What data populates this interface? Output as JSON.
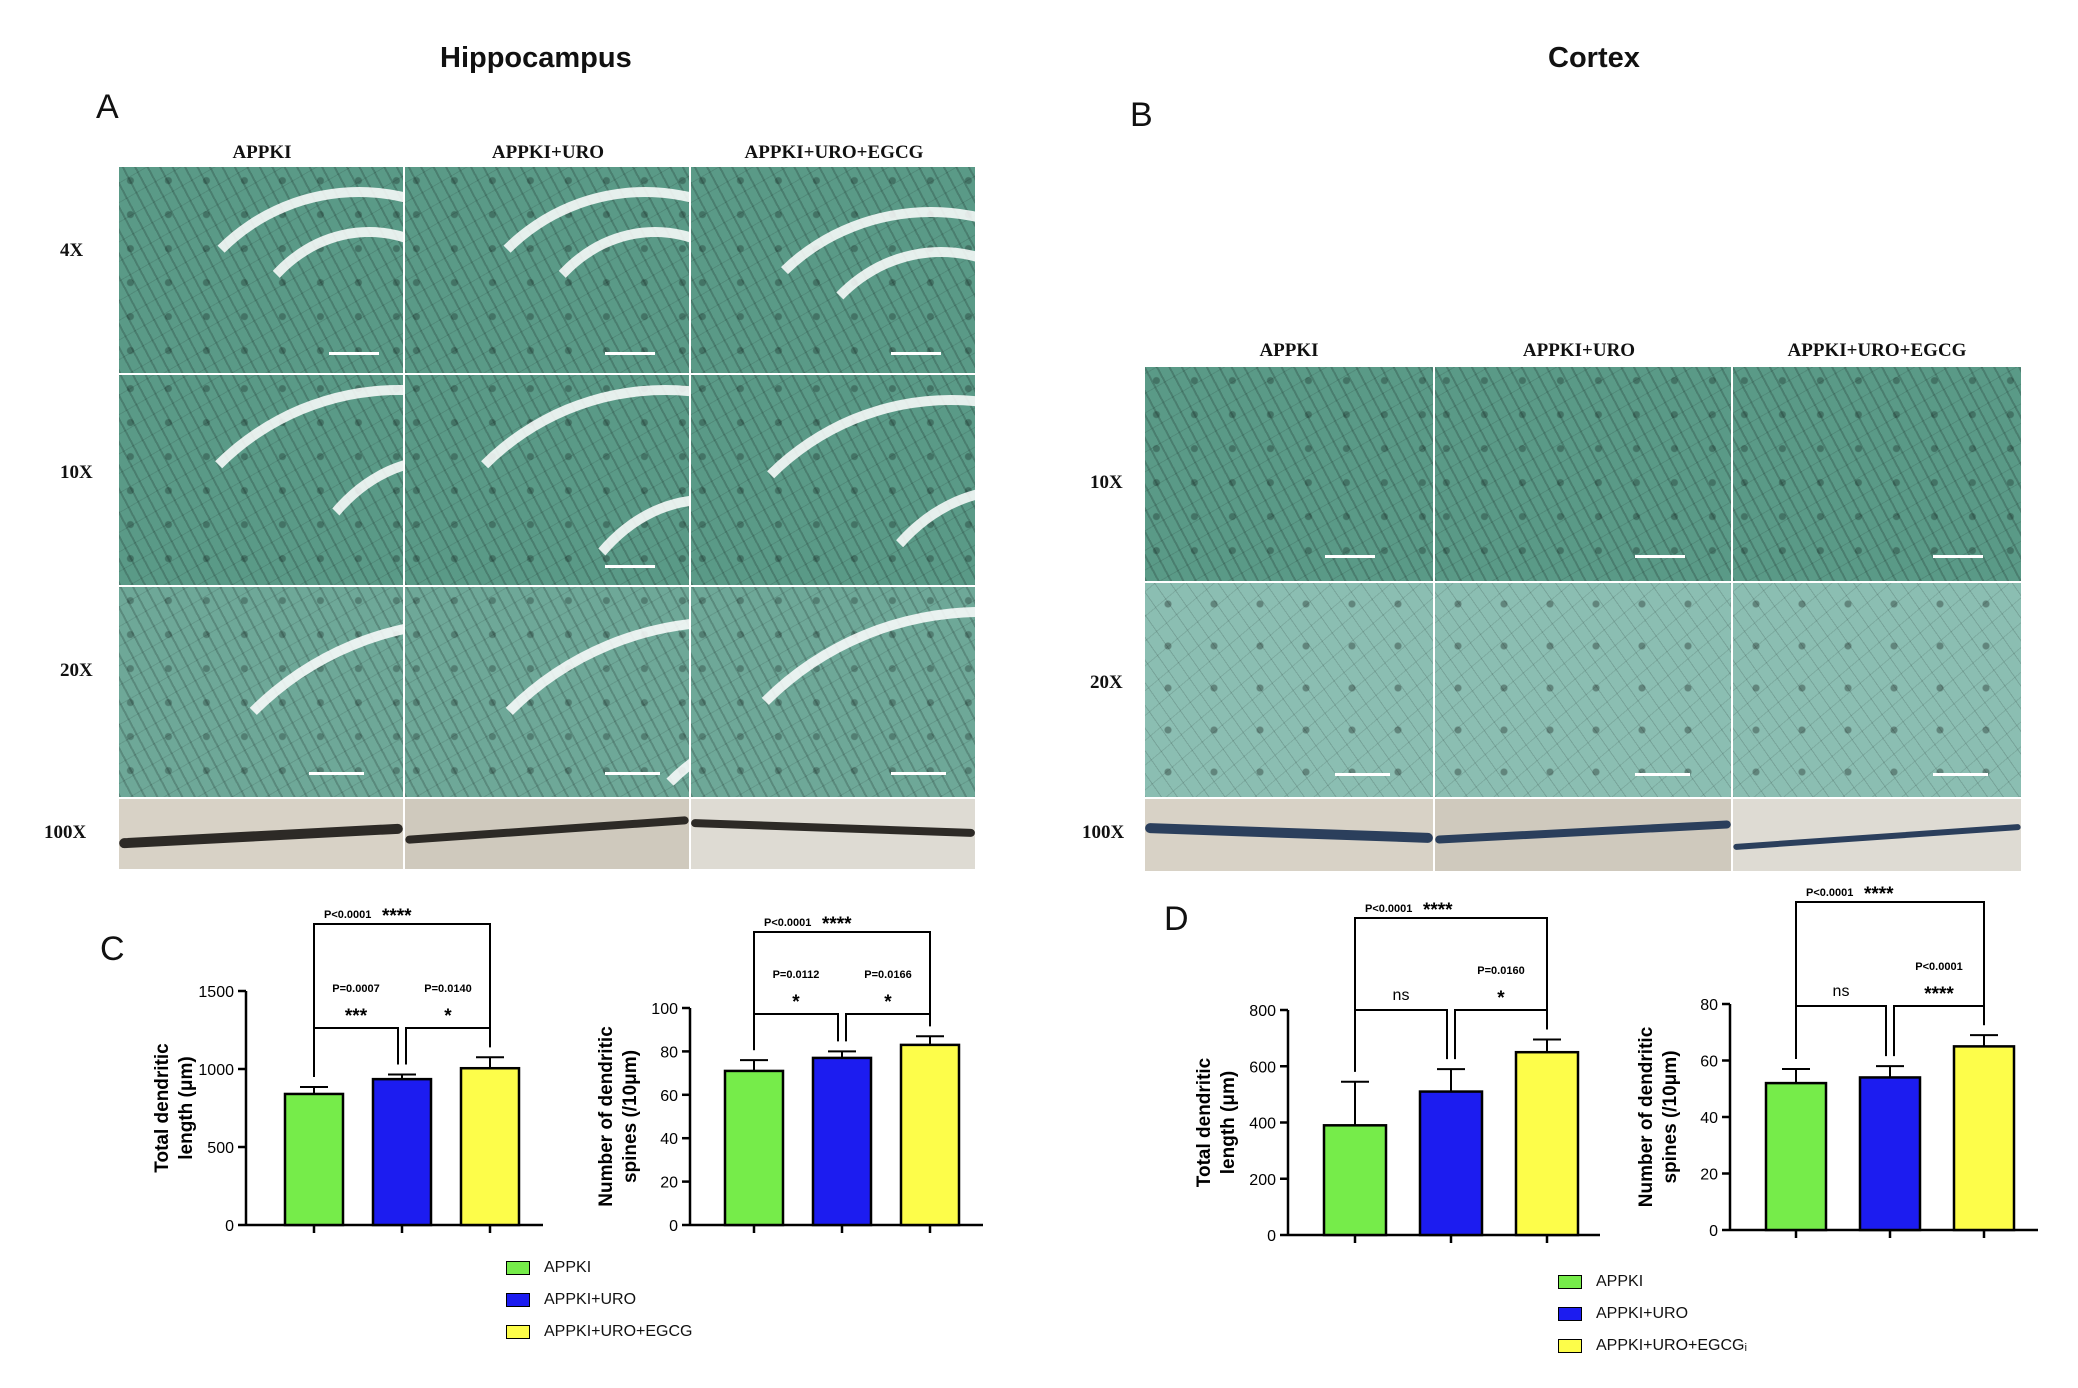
{
  "titles": {
    "left": "Hippocampus",
    "right": "Cortex"
  },
  "panel_letters": {
    "a": "A",
    "b": "B",
    "c": "C",
    "d": "D"
  },
  "groups": [
    "APPKI",
    "APPKI+URO",
    "APPKI+URO+EGCG"
  ],
  "hippocampus_rows": [
    "4X",
    "10X",
    "20X",
    "100X"
  ],
  "cortex_rows": [
    "10X",
    "20X",
    "100X"
  ],
  "colors": {
    "APPKI": "#76ec4a",
    "APPKI+URO": "#1c1cf0",
    "APPKI+URO+EGCG": "#fdfd4a"
  },
  "legend_left": [
    "APPKI",
    "APPKI+URO",
    "APPKI+URO+EGCG"
  ],
  "legend_right": [
    "APPKI",
    "APPKI+URO",
    "APPKI+URO+EGCGᵢ"
  ],
  "chart_data": [
    {
      "id": "C1",
      "type": "bar",
      "categories": [
        "APPKI",
        "APPKI+URO",
        "APPKI+URO+EGCG"
      ],
      "values": [
        840,
        935,
        1005
      ],
      "errors": [
        45,
        30,
        70
      ],
      "ylabel": "Total dendritic length (μm)",
      "ylim": [
        0,
        1500
      ],
      "yticks": [
        0,
        500,
        1000,
        1500
      ],
      "comparisons": [
        {
          "from": 0,
          "to": 1,
          "p": "P=0.0007",
          "stars": "***"
        },
        {
          "from": 1,
          "to": 2,
          "p": "P=0.0140",
          "stars": "*"
        },
        {
          "from": 0,
          "to": 2,
          "p": "P<0.0001",
          "stars": "****"
        }
      ]
    },
    {
      "id": "C2",
      "type": "bar",
      "categories": [
        "APPKI",
        "APPKI+URO",
        "APPKI+URO+EGCG"
      ],
      "values": [
        71,
        77,
        83
      ],
      "errors": [
        5,
        3,
        4
      ],
      "ylabel": "Number of dendritic spines (/10μm)",
      "ylim": [
        0,
        100
      ],
      "yticks": [
        0,
        20,
        40,
        60,
        80,
        100
      ],
      "comparisons": [
        {
          "from": 0,
          "to": 1,
          "p": "P=0.0112",
          "stars": "*"
        },
        {
          "from": 1,
          "to": 2,
          "p": "P=0.0166",
          "stars": "*"
        },
        {
          "from": 0,
          "to": 2,
          "p": "P<0.0001",
          "stars": "****"
        }
      ]
    },
    {
      "id": "D1",
      "type": "bar",
      "categories": [
        "APPKI",
        "APPKI+URO",
        "APPKI+URO+EGCG"
      ],
      "values": [
        390,
        510,
        650
      ],
      "errors": [
        155,
        80,
        45
      ],
      "ylabel": "Total dendritic length (μm)",
      "ylim": [
        0,
        800
      ],
      "yticks": [
        0,
        200,
        400,
        600,
        800
      ],
      "comparisons": [
        {
          "from": 0,
          "to": 1,
          "p": "",
          "stars": "ns"
        },
        {
          "from": 1,
          "to": 2,
          "p": "P=0.0160",
          "stars": "*"
        },
        {
          "from": 0,
          "to": 2,
          "p": "P<0.0001",
          "stars": "****"
        }
      ]
    },
    {
      "id": "D2",
      "type": "bar",
      "categories": [
        "APPKI",
        "APPKI+URO",
        "APPKI+URO+EGCG"
      ],
      "values": [
        52,
        54,
        65
      ],
      "errors": [
        5,
        4,
        4
      ],
      "ylabel": "Number of dendritic spines (/10μm)",
      "ylim": [
        0,
        80
      ],
      "yticks": [
        0,
        20,
        40,
        60,
        80
      ],
      "comparisons": [
        {
          "from": 0,
          "to": 1,
          "p": "",
          "stars": "ns"
        },
        {
          "from": 1,
          "to": 2,
          "p": "P<0.0001",
          "stars": "****"
        },
        {
          "from": 0,
          "to": 2,
          "p": "P<0.0001",
          "stars": "****"
        }
      ]
    }
  ]
}
